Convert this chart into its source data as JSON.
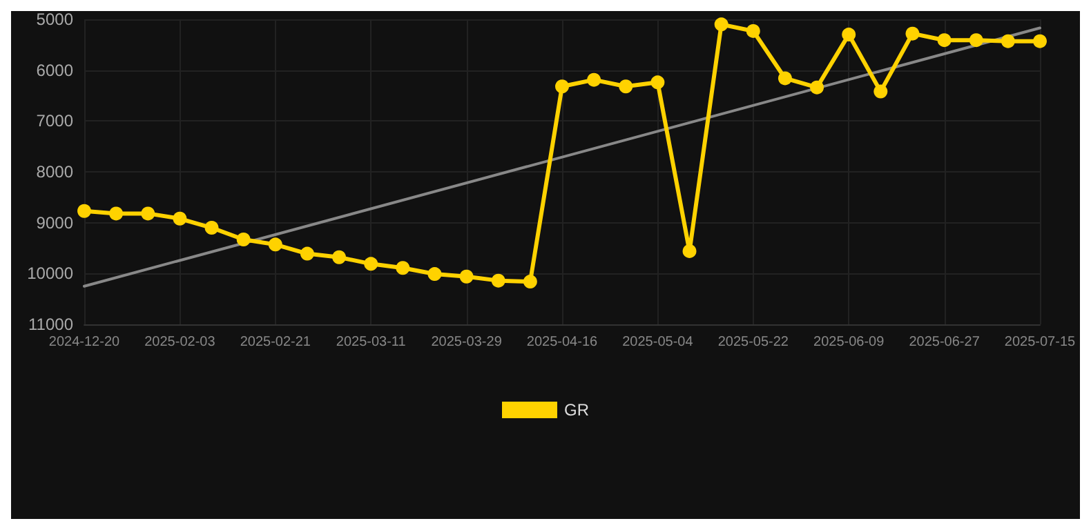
{
  "chart_data": {
    "type": "line",
    "categories": [
      "2024-12-20",
      null,
      null,
      "2025-02-03",
      null,
      null,
      "2025-02-21",
      null,
      null,
      "2025-03-11",
      null,
      null,
      "2025-03-29",
      null,
      null,
      "2025-04-16",
      null,
      null,
      "2025-05-04",
      null,
      null,
      "2025-05-22",
      null,
      null,
      "2025-06-09",
      null,
      null,
      "2025-06-27",
      null,
      null,
      "2025-07-15"
    ],
    "series": [
      {
        "name": "GR",
        "color": "#ffd200",
        "values": [
          8770,
          8820,
          8820,
          8920,
          9100,
          9330,
          9430,
          9610,
          9680,
          9810,
          9890,
          10010,
          10060,
          10140,
          10160,
          6320,
          6190,
          6320,
          6240,
          9560,
          5100,
          5230,
          6160,
          6340,
          5300,
          6420,
          5280,
          5410,
          5410,
          5430,
          5430
        ]
      },
      {
        "type": "line",
        "color": "#888888",
        "marker": "none",
        "values": [
          10250,
          null,
          null,
          null,
          null,
          null,
          null,
          null,
          null,
          null,
          null,
          null,
          null,
          null,
          null,
          null,
          null,
          null,
          null,
          null,
          null,
          null,
          null,
          null,
          null,
          null,
          null,
          null,
          null,
          null,
          5170
        ]
      }
    ],
    "ylim": [
      11000,
      5000
    ],
    "yticks": [
      5000,
      6000,
      7000,
      8000,
      9000,
      10000,
      11000
    ],
    "grid": true,
    "legend": "bottom",
    "marker": "circle",
    "line_style": "solid"
  }
}
